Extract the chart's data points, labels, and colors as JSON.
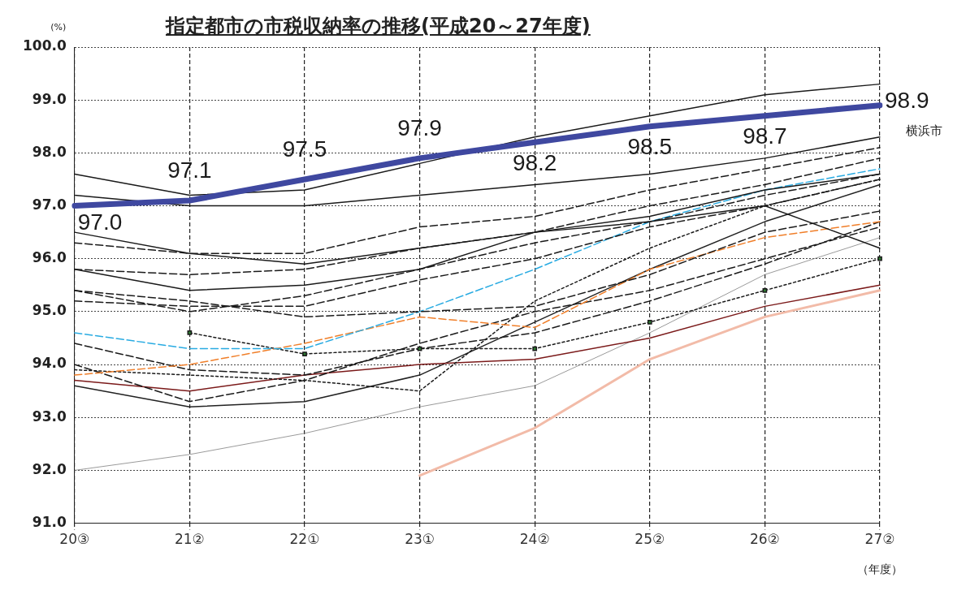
{
  "chart_data": {
    "type": "line",
    "title": "指定都市の市税収納率の推移(平成20～27年度)",
    "ylabel": "(%)",
    "xlabel": "（年度）",
    "categories": [
      "20③",
      "21②",
      "22①",
      "23①",
      "24②",
      "25②",
      "26②",
      "27②"
    ],
    "ylim": [
      91,
      100
    ],
    "yticks": [
      {
        "value": 91,
        "label": "91.0"
      },
      {
        "value": 92,
        "label": "92.0"
      },
      {
        "value": 93,
        "label": "93.0"
      },
      {
        "value": 94,
        "label": "94.0"
      },
      {
        "value": 95,
        "label": "95.0"
      },
      {
        "value": 96,
        "label": "96.0"
      },
      {
        "value": 97,
        "label": "97.0"
      },
      {
        "value": 98,
        "label": "98.0"
      },
      {
        "value": 99,
        "label": "99.0"
      },
      {
        "value": 100,
        "label": "100.0"
      }
    ],
    "grid": true,
    "legend": false,
    "marker": "none",
    "line_style": "solid",
    "series": [
      {
        "name": "横浜市",
        "color": "#3f48a0",
        "values": [
          97.0,
          97.1,
          97.5,
          97.9,
          98.2,
          98.5,
          98.7,
          98.9
        ],
        "value_labels": [
          "97.0",
          "97.1",
          "97.5",
          "97.9",
          "98.2",
          "98.5",
          "98.7",
          "98.9"
        ]
      },
      {
        "color": "#1a1a1a",
        "values": [
          97.6,
          97.2,
          97.3,
          97.8,
          98.3,
          98.7,
          99.1,
          99.3
        ]
      },
      {
        "color": "#1a1a1a",
        "values": [
          97.2,
          97.0,
          97.0,
          97.2,
          97.4,
          97.6,
          97.9,
          98.3
        ]
      },
      {
        "color": "#1a1a1a",
        "values": [
          96.5,
          96.1,
          95.9,
          96.2,
          96.5,
          96.7,
          97.0,
          96.2
        ]
      },
      {
        "color": "#1a1a1a",
        "line_style": "dashed",
        "values": [
          96.3,
          96.1,
          96.1,
          96.6,
          96.8,
          97.3,
          97.7,
          98.1
        ]
      },
      {
        "color": "#1a1a1a",
        "values": [
          95.8,
          95.4,
          95.5,
          95.8,
          96.5,
          96.8,
          97.3,
          97.6
        ]
      },
      {
        "color": "#1a1a1a",
        "line_style": "dashed",
        "values": [
          95.8,
          95.7,
          95.8,
          96.2,
          96.5,
          97.0,
          97.4,
          97.9
        ]
      },
      {
        "color": "#1a1a1a",
        "line_style": "dashed",
        "values": [
          95.4,
          95.2,
          94.9,
          95.0,
          95.1,
          95.7,
          96.5,
          96.9
        ]
      },
      {
        "color": "#1a1a1a",
        "line_style": "dashed",
        "values": [
          95.4,
          95.0,
          95.3,
          95.8,
          96.3,
          96.7,
          97.2,
          97.6
        ]
      },
      {
        "color": "#1a1a1a",
        "line_style": "dashed",
        "values": [
          95.2,
          95.1,
          95.1,
          95.6,
          96.0,
          96.6,
          97.0,
          97.5
        ]
      },
      {
        "color": "#29abe2",
        "line_style": "dashed",
        "values": [
          94.6,
          94.3,
          94.3,
          95.0,
          95.8,
          96.7,
          97.3,
          97.7
        ]
      },
      {
        "color": "#f07f2a",
        "line_style": "dashed",
        "values": [
          93.8,
          94.0,
          94.4,
          94.9,
          94.7,
          95.8,
          96.4,
          96.7
        ]
      },
      {
        "color": "#1a1a1a",
        "line_style": "dotted",
        "marker": "square",
        "values": [
          null,
          94.6,
          94.2,
          94.3,
          94.3,
          94.8,
          95.4,
          96.0
        ]
      },
      {
        "color": "#1a1a1a",
        "line_style": "dashed",
        "values": [
          94.4,
          93.9,
          93.8,
          94.3,
          94.6,
          95.2,
          95.9,
          96.7
        ]
      },
      {
        "color": "#1a1a1a",
        "line_style": "dashed",
        "values": [
          94.0,
          93.3,
          93.7,
          94.4,
          95.0,
          95.4,
          96.0,
          96.6
        ]
      },
      {
        "color": "#1a1a1a",
        "line_style": "dotted",
        "values": [
          93.9,
          93.8,
          93.7,
          93.5,
          95.2,
          96.2,
          97.0,
          97.5
        ]
      },
      {
        "color": "#7b1a1a",
        "values": [
          93.7,
          93.5,
          93.8,
          94.0,
          94.1,
          94.5,
          95.1,
          95.5
        ]
      },
      {
        "color": "#222222",
        "values": [
          93.6,
          93.2,
          93.3,
          93.8,
          94.8,
          95.8,
          96.7,
          97.4
        ]
      },
      {
        "color": "#808080",
        "values": [
          92.0,
          92.3,
          92.7,
          93.2,
          93.6,
          94.6,
          95.7,
          96.4
        ]
      },
      {
        "color": "#f2bba8",
        "values": [
          null,
          null,
          null,
          91.9,
          92.8,
          94.1,
          94.9,
          95.4
        ]
      }
    ]
  }
}
